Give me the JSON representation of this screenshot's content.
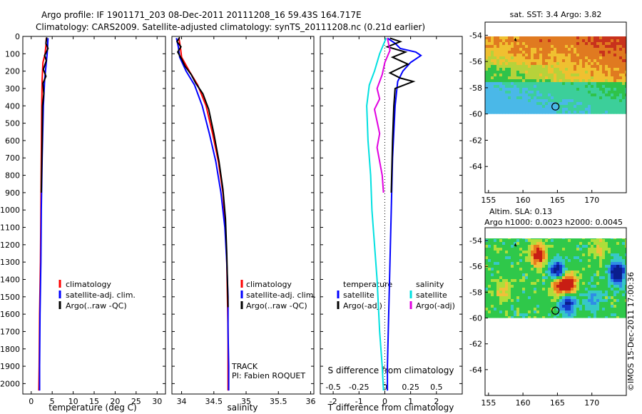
{
  "header": {
    "line1": "Argo profile: IF 1901171_203 08-Dec-2011 20111208_16 59.43S 164.717E",
    "line2": "Climatology: CARS2009. Satellite-adjusted climatology: synTS_20111208.nc (0.21d earlier)"
  },
  "chart_data": [
    {
      "type": "line",
      "xlabel": "temperature (deg C)",
      "ylabel": "",
      "xlim": [
        -2,
        32
      ],
      "ylim": [
        2060,
        0
      ],
      "xticks": [
        "0",
        "5",
        "10",
        "15",
        "20",
        "25",
        "30"
      ],
      "yticks": [
        "0",
        "100",
        "200",
        "300",
        "400",
        "500",
        "600",
        "700",
        "800",
        "900",
        "1000",
        "1100",
        "1200",
        "1300",
        "1400",
        "1500",
        "1600",
        "1700",
        "1800",
        "1900",
        "2000"
      ],
      "legend": [
        "climatology",
        "satellite-adj. clim.",
        "Argo(..raw -QC)"
      ],
      "series": [
        {
          "name": "climatology",
          "color": "#ff0000",
          "points": [
            [
              3.6,
              10
            ],
            [
              3.5,
              50
            ],
            [
              3.3,
              100
            ],
            [
              2.8,
              150
            ],
            [
              2.6,
              250
            ],
            [
              2.5,
              400
            ],
            [
              2.4,
              700
            ],
            [
              2.3,
              1000
            ],
            [
              2.2,
              1300
            ],
            [
              2.0,
              1600
            ],
            [
              1.9,
              1900
            ],
            [
              1.8,
              2040
            ]
          ]
        },
        {
          "name": "satellite-adj. clim.",
          "color": "#0000ff",
          "points": [
            [
              4.0,
              10
            ],
            [
              3.9,
              60
            ],
            [
              3.8,
              100
            ],
            [
              3.6,
              150
            ],
            [
              3.2,
              250
            ],
            [
              2.9,
              400
            ],
            [
              2.6,
              700
            ],
            [
              2.4,
              1000
            ],
            [
              2.3,
              1300
            ],
            [
              2.1,
              1600
            ],
            [
              2.0,
              1900
            ],
            [
              2.0,
              2040
            ]
          ]
        },
        {
          "name": "Argo(..raw -QC)",
          "color": "#000000",
          "points": [
            [
              3.7,
              5
            ],
            [
              3.5,
              40
            ],
            [
              4.0,
              70
            ],
            [
              3.2,
              110
            ],
            [
              3.6,
              140
            ],
            [
              2.9,
              190
            ],
            [
              3.5,
              230
            ],
            [
              2.8,
              270
            ],
            [
              3.0,
              330
            ],
            [
              2.7,
              400
            ],
            [
              2.6,
              600
            ],
            [
              2.4,
              900
            ]
          ]
        }
      ]
    },
    {
      "type": "line",
      "xlabel": "salinity",
      "ylabel": "",
      "xlim": [
        33.85,
        36.05
      ],
      "ylim": [
        2060,
        0
      ],
      "xticks": [
        "34",
        "34.5",
        "35",
        "35.5",
        "36"
      ],
      "legend": [
        "climatology",
        "satellite-adj. clim.",
        "Argo(..raw -QC)"
      ],
      "annotations": [
        "TRACK",
        "PI: Fabien ROQUET"
      ],
      "series": [
        {
          "name": "climatology",
          "color": "#ff0000",
          "points": [
            [
              33.96,
              10
            ],
            [
              33.98,
              60
            ],
            [
              34.0,
              120
            ],
            [
              34.12,
              200
            ],
            [
              34.25,
              280
            ],
            [
              34.38,
              400
            ],
            [
              34.48,
              560
            ],
            [
              34.57,
              720
            ],
            [
              34.64,
              900
            ],
            [
              34.68,
              1100
            ],
            [
              34.7,
              1300
            ],
            [
              34.71,
              1500
            ],
            [
              34.72,
              1700
            ],
            [
              34.72,
              1900
            ],
            [
              34.72,
              2040
            ]
          ]
        },
        {
          "name": "satellite-adj. clim.",
          "color": "#0000ff",
          "points": [
            [
              33.92,
              10
            ],
            [
              33.95,
              60
            ],
            [
              33.97,
              120
            ],
            [
              34.07,
              200
            ],
            [
              34.2,
              280
            ],
            [
              34.32,
              400
            ],
            [
              34.43,
              560
            ],
            [
              34.53,
              720
            ],
            [
              34.61,
              900
            ],
            [
              34.67,
              1100
            ],
            [
              34.7,
              1300
            ],
            [
              34.72,
              1500
            ],
            [
              34.72,
              1700
            ],
            [
              34.73,
              1900
            ],
            [
              34.73,
              2040
            ]
          ]
        },
        {
          "name": "Argo(..raw -QC)",
          "color": "#000000",
          "points": [
            [
              33.97,
              5
            ],
            [
              33.93,
              30
            ],
            [
              33.99,
              60
            ],
            [
              33.94,
              90
            ],
            [
              34.0,
              130
            ],
            [
              34.05,
              170
            ],
            [
              34.15,
              220
            ],
            [
              34.22,
              270
            ],
            [
              34.33,
              330
            ],
            [
              34.42,
              420
            ],
            [
              34.5,
              560
            ],
            [
              34.58,
              720
            ],
            [
              34.64,
              880
            ],
            [
              34.68,
              1050
            ],
            [
              34.7,
              1250
            ],
            [
              34.71,
              1400
            ],
            [
              34.72,
              1560
            ]
          ]
        }
      ]
    },
    {
      "type": "line",
      "xlabel": "T difference from climatology",
      "xlabel_top": "S difference from climatology",
      "ylabel": "",
      "xlim": [
        -2.5,
        3.0
      ],
      "ylim": [
        2060,
        0
      ],
      "xticks": [
        "-2",
        "-1",
        "0",
        "1",
        "2"
      ],
      "xticks_top": [
        "-0.5",
        "-0.25",
        "0",
        "0.25",
        "0.5"
      ],
      "legend_titles": [
        "temperature",
        "salinity"
      ],
      "legend": [
        "satellite",
        "Argo(-adj)",
        "satellite",
        "Argo(-adj)"
      ],
      "series": [
        {
          "name": "satellite",
          "color": "#0000ff",
          "points": [
            [
              0.1,
              10
            ],
            [
              0.4,
              40
            ],
            [
              0.6,
              70
            ],
            [
              1.2,
              90
            ],
            [
              1.4,
              110
            ],
            [
              1.0,
              150
            ],
            [
              0.7,
              200
            ],
            [
              0.5,
              260
            ],
            [
              0.4,
              400
            ],
            [
              0.3,
              700
            ],
            [
              0.25,
              1000
            ],
            [
              0.2,
              1300
            ],
            [
              0.15,
              1600
            ],
            [
              0.1,
              1900
            ],
            [
              0.1,
              2040
            ]
          ]
        },
        {
          "name": "Argo(-adj)",
          "color": "#000000",
          "points": [
            [
              0.2,
              10
            ],
            [
              0.6,
              30
            ],
            [
              0.1,
              60
            ],
            [
              0.8,
              90
            ],
            [
              0.3,
              120
            ],
            [
              0.9,
              160
            ],
            [
              0.2,
              210
            ],
            [
              0.6,
              240
            ],
            [
              1.1,
              260
            ],
            [
              0.4,
              300
            ],
            [
              0.35,
              400
            ],
            [
              0.3,
              600
            ],
            [
              0.25,
              900
            ]
          ]
        },
        {
          "name": "satellite",
          "color": "#00e0e0",
          "points": [
            [
              0.05,
              10
            ],
            [
              -0.2,
              100
            ],
            [
              -0.4,
              200
            ],
            [
              -0.6,
              280
            ],
            [
              -0.7,
              400
            ],
            [
              -0.65,
              600
            ],
            [
              -0.55,
              800
            ],
            [
              -0.5,
              1000
            ],
            [
              -0.4,
              1200
            ],
            [
              -0.3,
              1400
            ],
            [
              -0.2,
              1700
            ],
            [
              -0.1,
              1900
            ],
            [
              -0.05,
              2040
            ]
          ]
        },
        {
          "name": "Argo(-adj)",
          "color": "#e000e0",
          "points": [
            [
              0.1,
              10
            ],
            [
              0.2,
              80
            ],
            [
              0.0,
              150
            ],
            [
              -0.1,
              220
            ],
            [
              -0.3,
              300
            ],
            [
              -0.2,
              360
            ],
            [
              -0.4,
              420
            ],
            [
              -0.2,
              560
            ],
            [
              -0.3,
              640
            ],
            [
              -0.1,
              800
            ],
            [
              -0.05,
              900
            ]
          ]
        }
      ]
    },
    {
      "type": "heatmap",
      "title": "sat. SST: 3.4 Argo: 3.82",
      "xlim": [
        154.5,
        175
      ],
      "ylim": [
        -66,
        -53
      ],
      "xticks": [
        "155",
        "160",
        "165",
        "170"
      ],
      "yticks": [
        "-54",
        "-56",
        "-58",
        "-60",
        "-62",
        "-64"
      ],
      "float_lon": 164.717,
      "float_lat": -59.43
    },
    {
      "type": "heatmap",
      "title": "Altim. SLA: 0.13",
      "subtitle": "Argo h1000: 0.0023 h2000: 0.0045",
      "xlim": [
        154.5,
        175
      ],
      "ylim": [
        -66,
        -53
      ],
      "xticks": [
        "155",
        "160",
        "165",
        "170"
      ],
      "yticks": [
        "-54",
        "-56",
        "-58",
        "-60",
        "-62",
        "-64"
      ],
      "float_lon": 164.717,
      "float_lat": -59.43
    }
  ],
  "footer": {
    "credit": "©IMOS 15-Dec-2011 17:00:36"
  }
}
